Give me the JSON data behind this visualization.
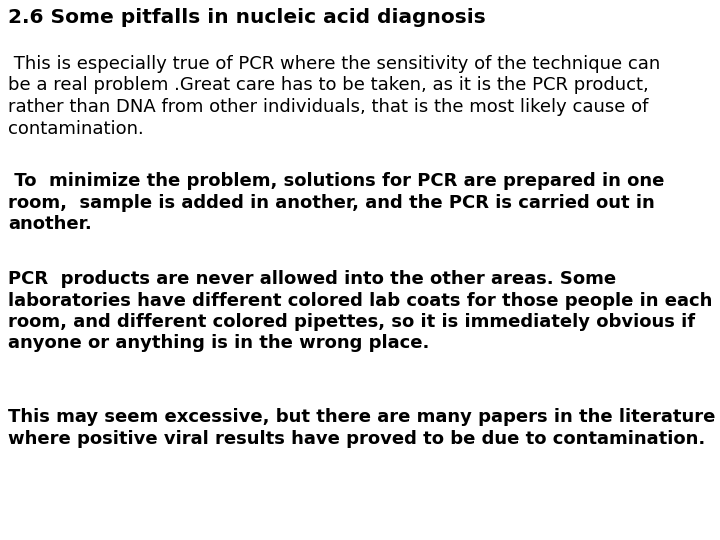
{
  "background_color": "#ffffff",
  "title": "2.6 Some pitfalls in nucleic acid diagnosis",
  "paragraphs": [
    {
      "text": " This is especially true of PCR where the sensitivity of the technique can be a real problem .Great care has to be taken, as it is the PCR product, rather than DNA from other individuals, that is the most likely cause of contamination.",
      "bold": false,
      "fontsize": 13.0,
      "lines": [
        " This is especially true of PCR where the sensitivity of the technique can",
        "be a real problem .Great care has to be taken, as it is the PCR product,",
        "rather than DNA from other individuals, that is the most likely cause of",
        "contamination."
      ]
    },
    {
      "text": " To  minimize the problem, solutions for PCR are prepared in one room,  sample is added in another, and the PCR is carried out in another.",
      "bold": true,
      "fontsize": 13.0,
      "lines": [
        " To  minimize the problem, solutions for PCR are prepared in one",
        "room,  sample is added in another, and the PCR is carried out in",
        "another."
      ]
    },
    {
      "text": "PCR  products are never allowed into the other areas. Some laboratories have different colored lab coats for those people in each room, and different colored pipettes, so it is immediately obvious if anyone or anything is in the wrong place.",
      "bold": true,
      "fontsize": 13.0,
      "lines": [
        "PCR  products are never allowed into the other areas. Some",
        "laboratories have different colored lab coats for those people in each",
        "room, and different colored pipettes, so it is immediately obvious if",
        "anyone or anything is in the wrong place."
      ]
    },
    {
      "text": "This may seem excessive, but there are many papers in the literature where positive viral results have proved to be due to contamination.",
      "bold": true,
      "fontsize": 13.0,
      "lines": [
        "This may seem excessive, but there are many papers in the literature",
        "where positive viral results have proved to be due to contamination."
      ]
    }
  ],
  "title_fontsize": 14.5,
  "title_bold": true,
  "text_color": "#000000",
  "font_family": "DejaVu Sans"
}
